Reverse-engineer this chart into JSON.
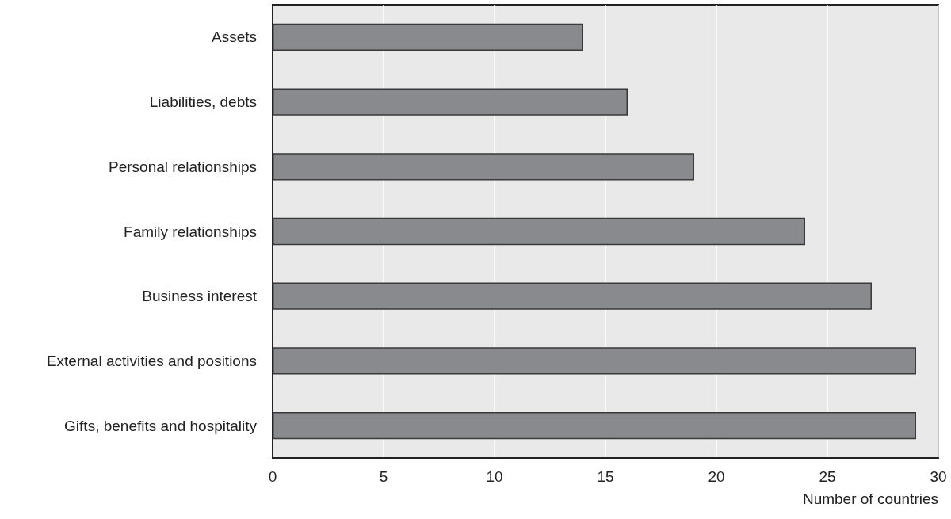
{
  "chart_data": {
    "type": "bar",
    "orientation": "horizontal",
    "categories": [
      "Assets",
      "Liabilities, debts",
      "Personal relationships",
      "Family relationships",
      "Business interest",
      "External activities and positions",
      "Gifts, benefits and hospitality"
    ],
    "values": [
      14,
      16,
      19,
      24,
      27,
      29,
      29
    ],
    "color": "#898a8e",
    "xlabel": "Number of countries",
    "xlim": [
      0,
      30
    ],
    "xticks": [
      0,
      5,
      10,
      15,
      20,
      25,
      30
    ],
    "grid": "x"
  }
}
